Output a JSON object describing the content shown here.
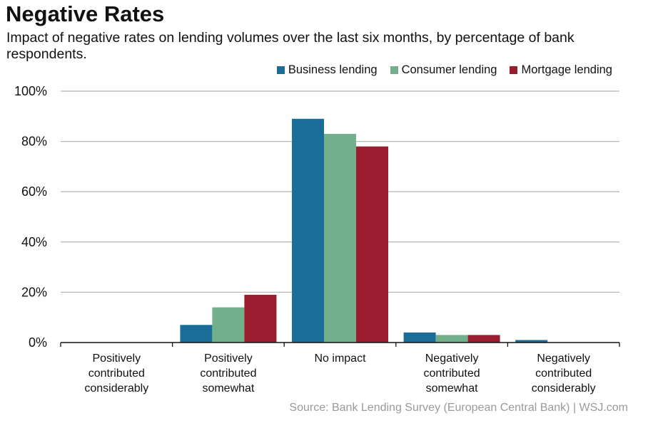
{
  "chart_data": {
    "type": "bar",
    "title": "Negative Rates",
    "subtitle": "Impact of negative rates on lending volumes over the last six months, by percentage of bank respondents.",
    "categories": [
      [
        "Positively",
        "contributed",
        "considerably"
      ],
      [
        "Positively",
        "contributed",
        "somewhat"
      ],
      [
        "No impact"
      ],
      [
        "Negatively",
        "contributed",
        "somewhat"
      ],
      [
        "Negatively",
        "contributed",
        "considerably"
      ]
    ],
    "series": [
      {
        "name": "Business lending",
        "color": "#1a6d99",
        "values": [
          0,
          7,
          89,
          4,
          1
        ]
      },
      {
        "name": "Consumer lending",
        "color": "#72b08b",
        "values": [
          0,
          14,
          83,
          3,
          0
        ]
      },
      {
        "name": "Mortgage lending",
        "color": "#9b1c2e",
        "values": [
          0,
          19,
          78,
          3,
          0
        ]
      }
    ],
    "yticks": [
      "0%",
      "20%",
      "40%",
      "60%",
      "80%",
      "100%"
    ],
    "ylim": [
      0,
      100
    ],
    "grid": true,
    "legend_position": "top-right",
    "source": "Source: Bank Lending Survey (European Central Bank)  |  WSJ.com"
  }
}
